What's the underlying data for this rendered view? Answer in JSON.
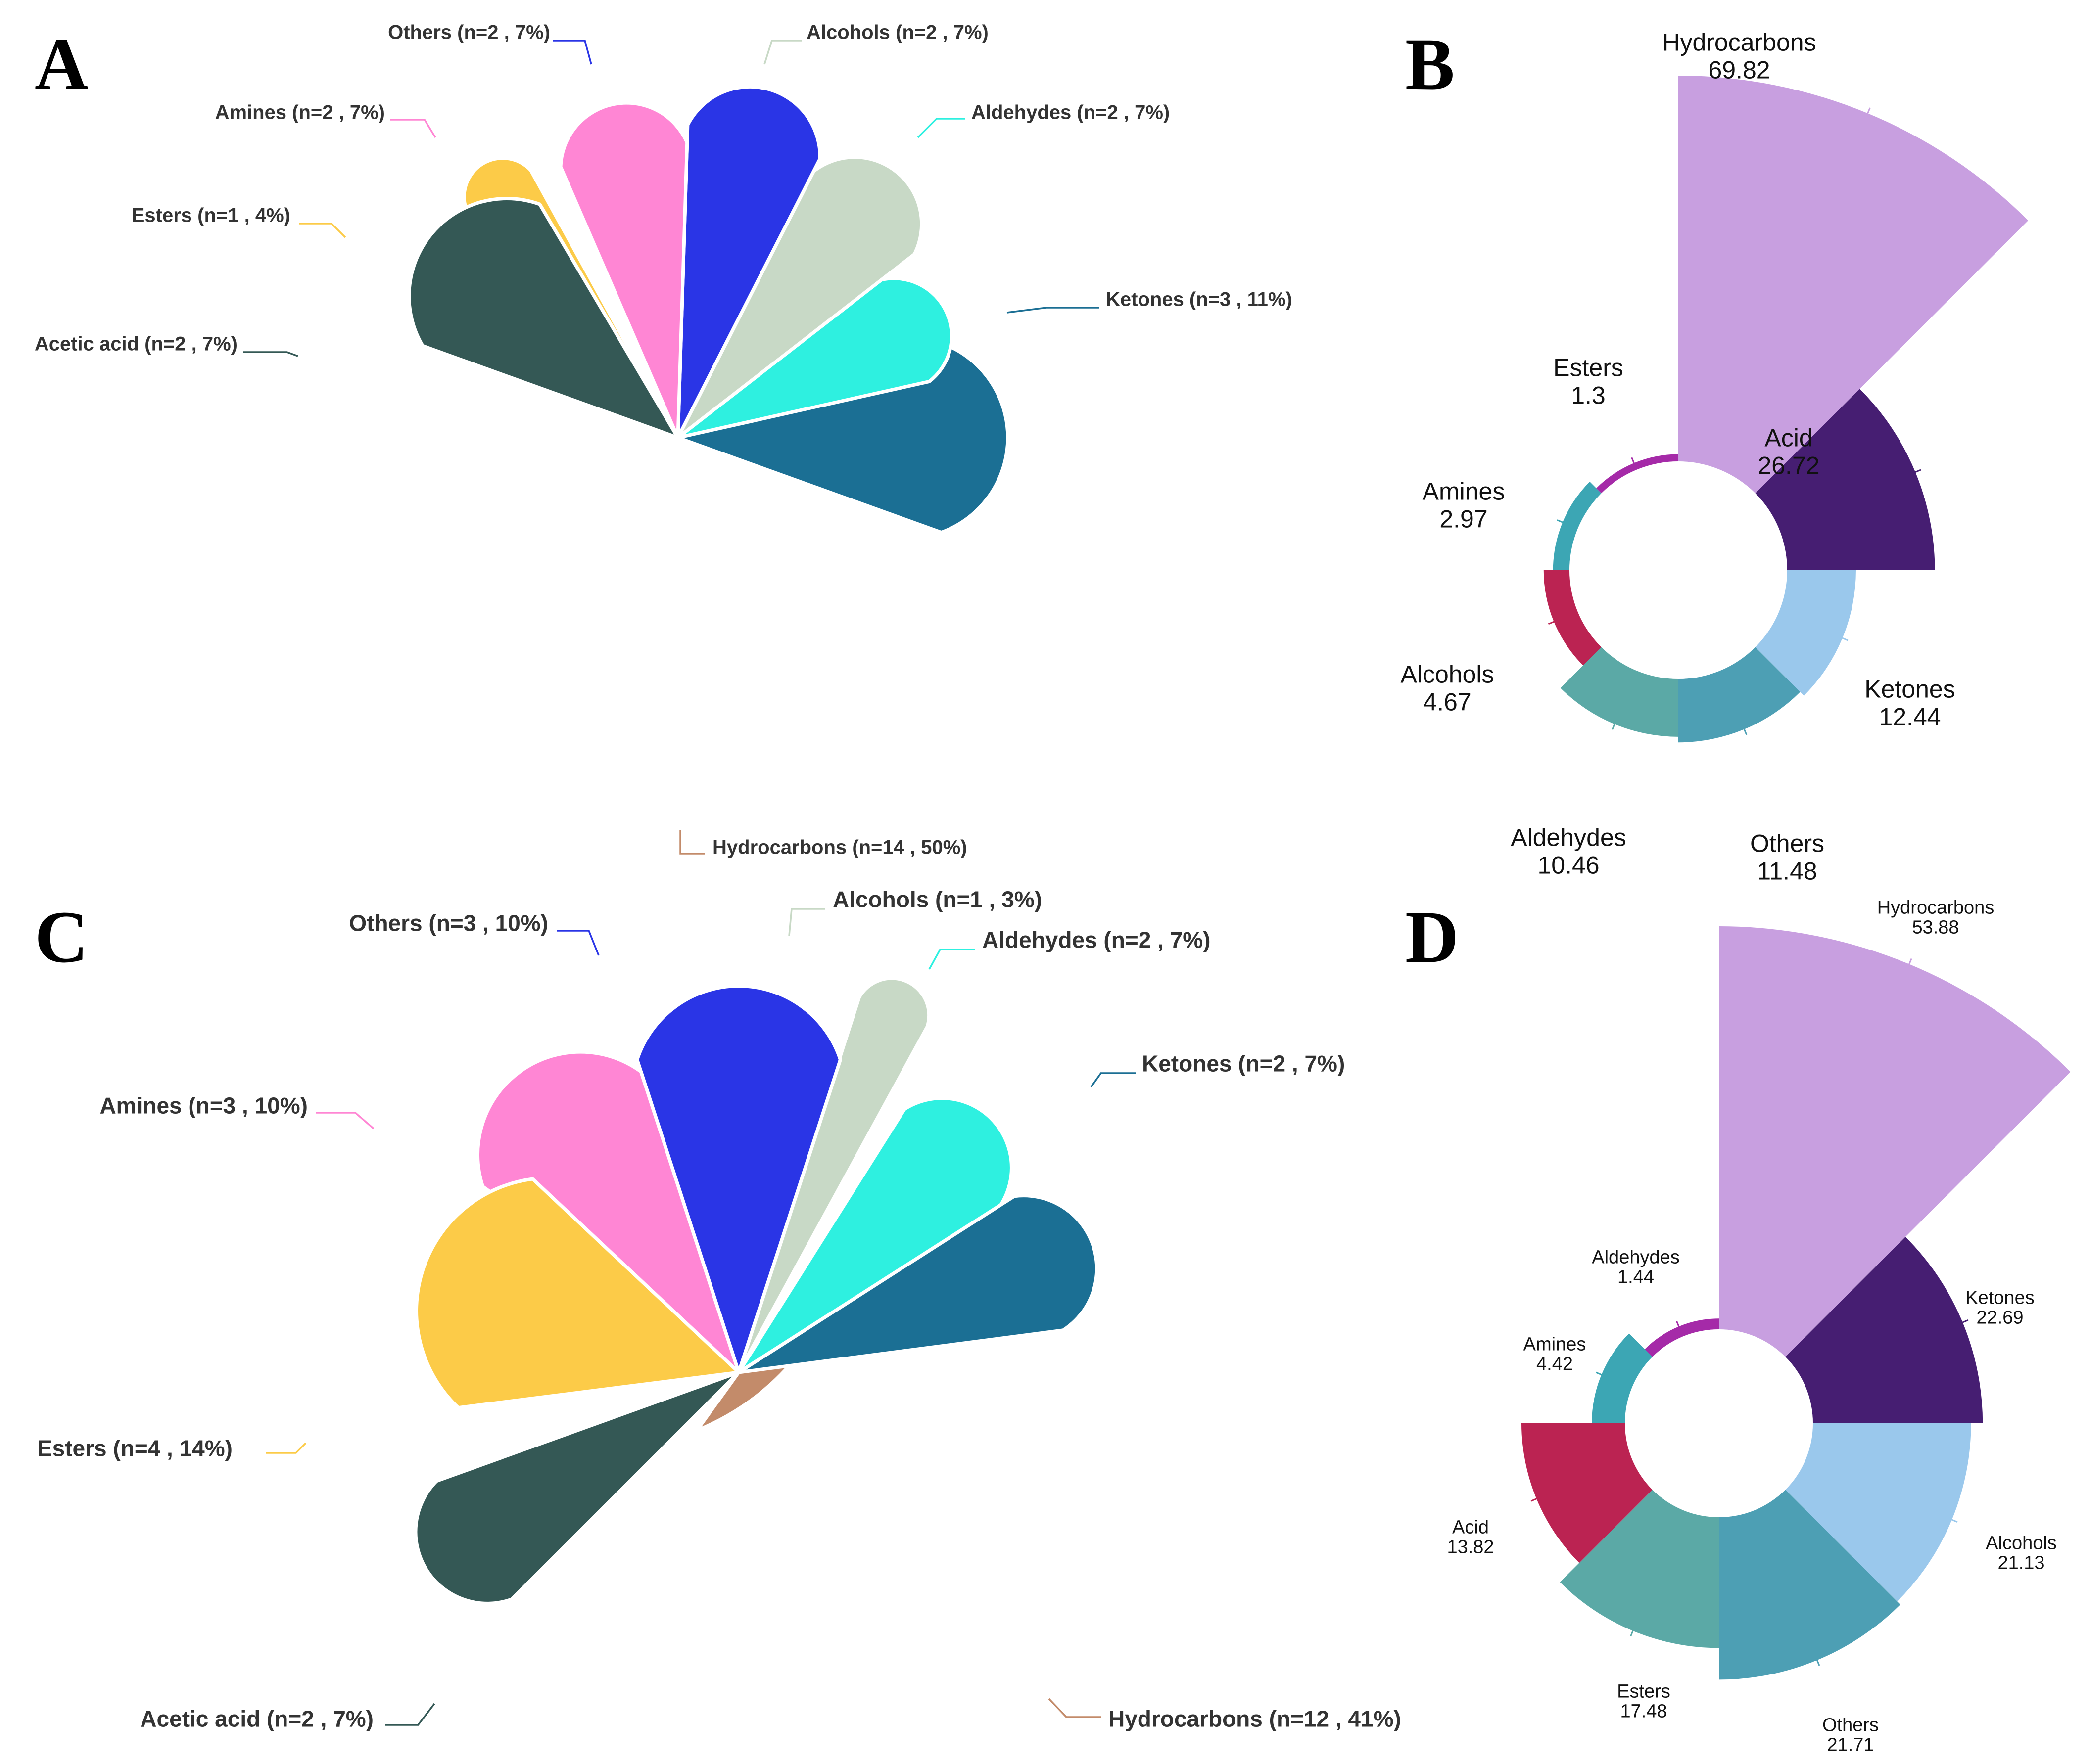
{
  "panels": [
    "A",
    "B",
    "C",
    "D"
  ],
  "colors": {
    "Hydrocarbons": "#c38b6a",
    "Ketones": "#1b6f94",
    "Aldehydes": "#2ef0e0",
    "Alcohols": "#c8d9c6",
    "Others": "#2a35e6",
    "Amines": "#ff86d4",
    "Esters": "#fccb48",
    "Acetic acid": "#345855"
  },
  "chart_data": [
    {
      "panel": "A",
      "type": "pie",
      "slices": [
        {
          "name": "Hydrocarbons",
          "label": "Hydrocarbons (n=14 , 50%)",
          "n": 14,
          "percent": 50
        },
        {
          "name": "Ketones",
          "label": "Ketones (n=3 , 11%)",
          "n": 3,
          "percent": 11
        },
        {
          "name": "Aldehydes",
          "label": "Aldehydes (n=2 , 7%)",
          "n": 2,
          "percent": 7
        },
        {
          "name": "Alcohols",
          "label": "Alcohols (n=2 , 7%)",
          "n": 2,
          "percent": 7
        },
        {
          "name": "Others",
          "label": "Others (n=2 , 7%)",
          "n": 2,
          "percent": 7
        },
        {
          "name": "Amines",
          "label": "Amines (n=2 , 7%)",
          "n": 2,
          "percent": 7
        },
        {
          "name": "Esters",
          "label": "Esters (n=1 , 4%)",
          "n": 1,
          "percent": 4
        },
        {
          "name": "Acetic acid",
          "label": "Acetic acid (n=2 , 7%)",
          "n": 2,
          "percent": 7
        }
      ]
    },
    {
      "panel": "B",
      "type": "rose",
      "slices": [
        {
          "name": "Hydrocarbons",
          "value": 69.82,
          "value_label": "69.82",
          "color": "#c89fe0"
        },
        {
          "name": "Acid",
          "value": 26.72,
          "value_label": "26.72",
          "color": "#461e72"
        },
        {
          "name": "Ketones",
          "value": 12.44,
          "value_label": "12.44",
          "color": "#9ac8ec"
        },
        {
          "name": "Others",
          "value": 11.48,
          "value_label": "11.48",
          "color": "#4d9fb4"
        },
        {
          "name": "Aldehydes",
          "value": 10.46,
          "value_label": "10.46",
          "color": "#5ba9a6"
        },
        {
          "name": "Alcohols",
          "value": 4.67,
          "value_label": "4.67",
          "color": "#bb2352"
        },
        {
          "name": "Amines",
          "value": 2.97,
          "value_label": "2.97",
          "color": "#3ca6b4"
        },
        {
          "name": "Esters",
          "value": 1.3,
          "value_label": "1.3",
          "color": "#a52aa8"
        }
      ]
    },
    {
      "panel": "C",
      "type": "pie",
      "slices": [
        {
          "name": "Hydrocarbons",
          "label": "Hydrocarbons (n=12 , 41%)",
          "n": 12,
          "percent": 41
        },
        {
          "name": "Ketones",
          "label": "Ketones (n=2 , 7%)",
          "n": 2,
          "percent": 7
        },
        {
          "name": "Aldehydes",
          "label": "Aldehydes (n=2 , 7%)",
          "n": 2,
          "percent": 7
        },
        {
          "name": "Alcohols",
          "label": "Alcohols (n=1 , 3%)",
          "n": 1,
          "percent": 3
        },
        {
          "name": "Others",
          "label": "Others (n=3 , 10%)",
          "n": 3,
          "percent": 10
        },
        {
          "name": "Amines",
          "label": "Amines (n=3 , 10%)",
          "n": 3,
          "percent": 10
        },
        {
          "name": "Esters",
          "label": "Esters (n=4 , 14%)",
          "n": 4,
          "percent": 14
        },
        {
          "name": "Acetic acid",
          "label": "Acetic acid (n=2 , 7%)",
          "n": 2,
          "percent": 7
        }
      ]
    },
    {
      "panel": "D",
      "type": "rose",
      "slices": [
        {
          "name": "Hydrocarbons",
          "value": 53.88,
          "value_label": "53.88",
          "color": "#c89fe0"
        },
        {
          "name": "Ketones",
          "value": 22.69,
          "value_label": "22.69",
          "color": "#461e72"
        },
        {
          "name": "Alcohols",
          "value": 21.13,
          "value_label": "21.13",
          "color": "#9ac8ec"
        },
        {
          "name": "Others",
          "value": 21.71,
          "value_label": "21.71",
          "color": "#4d9fb4"
        },
        {
          "name": "Esters",
          "value": 17.48,
          "value_label": "17.48",
          "color": "#5ba9a6"
        },
        {
          "name": "Acid",
          "value": 13.82,
          "value_label": "13.82",
          "color": "#bb2352"
        },
        {
          "name": "Amines",
          "value": 4.42,
          "value_label": "4.42",
          "color": "#3ca6b4"
        },
        {
          "name": "Aldehydes",
          "value": 1.44,
          "value_label": "1.44",
          "color": "#a52aa8"
        }
      ]
    }
  ]
}
